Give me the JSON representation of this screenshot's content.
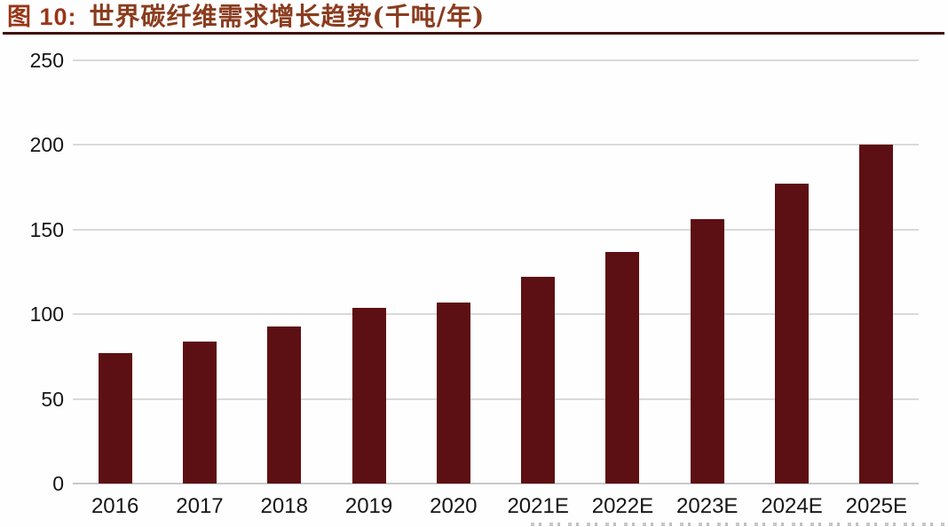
{
  "figure": {
    "label": "图 10:",
    "title": "世界碳纤维需求增长趋势(千吨/年)"
  },
  "chart_data": {
    "type": "bar",
    "title": "世界碳纤维需求增长趋势(千吨/年)",
    "categories": [
      "2016",
      "2017",
      "2018",
      "2019",
      "2020",
      "2021E",
      "2022E",
      "2023E",
      "2024E",
      "2025E"
    ],
    "values": [
      77,
      84,
      93,
      104,
      107,
      122,
      137,
      156,
      177,
      200
    ],
    "xlabel": "",
    "ylabel": "",
    "ylim": [
      0,
      250
    ],
    "yticks": [
      0,
      50,
      100,
      150,
      200,
      250
    ],
    "grid": true,
    "legend": "none",
    "bar_color": "#5d1013"
  },
  "colors": {
    "bar": "#5d1013",
    "figure_label": "#9a3517",
    "figure_title": "#8a3c1e",
    "title_rule": "#3e120e",
    "gridline": "#dadada",
    "axis_text": "#151515",
    "background": "#fefefe"
  }
}
